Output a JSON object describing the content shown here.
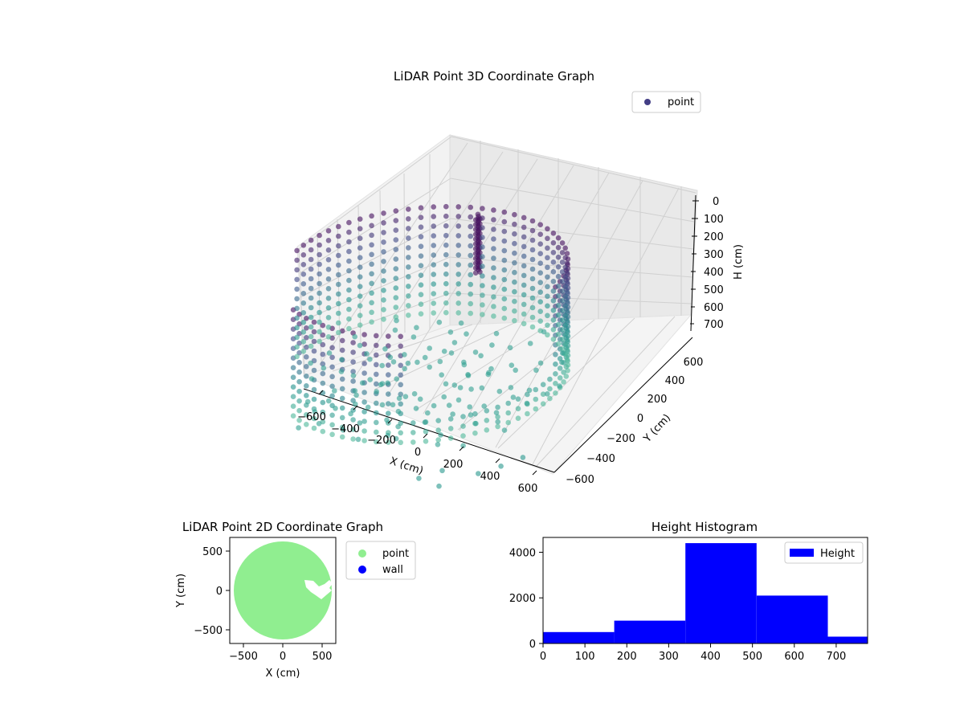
{
  "chart_data": [
    {
      "type": "scatter",
      "projection": "3d",
      "title": "LiDAR Point 3D Coordinate Graph",
      "xlabel": "X (cm)",
      "ylabel": "Y (cm)",
      "zlabel": "H (cm)",
      "x_ticks": [
        "−600",
        "−400",
        "−200",
        "0",
        "200",
        "400",
        "600"
      ],
      "y_ticks": [
        "−600",
        "−400",
        "−200",
        "0",
        "200",
        "400",
        "600"
      ],
      "z_ticks": [
        "0",
        "100",
        "200",
        "300",
        "400",
        "500",
        "600",
        "700"
      ],
      "xlim": [
        -650,
        650
      ],
      "ylim": [
        -650,
        650
      ],
      "zlim": [
        0,
        780
      ],
      "z_inverted": true,
      "grid": true,
      "legend": {
        "position": "top-right",
        "entries": [
          "point"
        ]
      },
      "colormap": "viridis (dark purple to teal)",
      "series": [
        {
          "name": "point",
          "description": "points along a circular wall of radius about 600 cm, plus a cluster near x=-150,y=550 and a sparse floor region",
          "wall_radius": 600,
          "cluster_points": [
            [
              -160,
              560
            ],
            [
              -140,
              545
            ],
            [
              -175,
              575
            ],
            [
              -150,
              530
            ]
          ]
        }
      ]
    },
    {
      "type": "scatter",
      "title": "LiDAR Point 2D Coordinate Graph",
      "xlabel": "X (cm)",
      "ylabel": "Y (cm)",
      "x_ticks": [
        "−500",
        "0",
        "500"
      ],
      "y_ticks": [
        "500",
        "0",
        "−500"
      ],
      "xlim": [
        -680,
        680
      ],
      "ylim": [
        -680,
        680
      ],
      "legend": {
        "position": "outside-right",
        "entries": [
          "point",
          "wall"
        ]
      },
      "series": [
        {
          "name": "point",
          "color": "#90ee90"
        },
        {
          "name": "wall",
          "color": "#0000ff"
        }
      ]
    },
    {
      "type": "bar",
      "title": "Height Histogram",
      "x_ticks": [
        "0",
        "100",
        "200",
        "300",
        "400",
        "500",
        "600",
        "700"
      ],
      "y_ticks": [
        "0",
        "2000",
        "4000"
      ],
      "xlim": [
        0,
        775
      ],
      "ylim": [
        0,
        4650
      ],
      "bin_edges": [
        0,
        170,
        340,
        510,
        680,
        775
      ],
      "counts": [
        500,
        1000,
        4400,
        2100,
        300
      ],
      "legend": {
        "position": "top-right",
        "entries": [
          "Height"
        ]
      },
      "series": [
        {
          "name": "Height",
          "color": "#0000ff"
        }
      ]
    }
  ]
}
